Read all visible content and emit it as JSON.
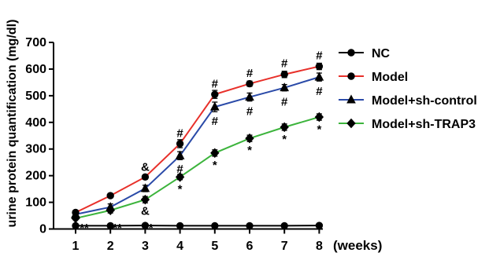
{
  "chart_data": {
    "type": "line",
    "xlabel": "(weeks)",
    "ylabel": "urine protein quantification (mg/dl)",
    "x": [
      1,
      2,
      3,
      4,
      5,
      6,
      7,
      8
    ],
    "xticks": [
      "1",
      "2",
      "3",
      "4",
      "5",
      "6",
      "7",
      "8"
    ],
    "ylim": [
      0,
      700
    ],
    "yticks": [
      "0",
      "100",
      "200",
      "300",
      "400",
      "500",
      "600",
      "700"
    ],
    "grid": false,
    "legend_position": "right",
    "series": [
      {
        "name": "NC",
        "color": "#000000",
        "marker": "circle",
        "values": [
          12,
          12,
          13,
          12,
          12,
          12,
          12,
          13
        ],
        "errors": [
          3,
          3,
          3,
          3,
          3,
          3,
          3,
          3
        ]
      },
      {
        "name": "Model",
        "color": "#e8302a",
        "marker": "circle",
        "values": [
          62,
          125,
          195,
          320,
          505,
          545,
          580,
          610
        ],
        "errors": [
          6,
          8,
          8,
          15,
          15,
          10,
          12,
          12
        ]
      },
      {
        "name": "Model+sh-control",
        "color": "#2a4aa8",
        "marker": "triangle",
        "values": [
          55,
          82,
          152,
          275,
          458,
          495,
          530,
          570
        ],
        "errors": [
          6,
          12,
          12,
          15,
          18,
          15,
          12,
          15
        ]
      },
      {
        "name": "Model+sh-TRAP3",
        "color": "#3cb43c",
        "marker": "diamond",
        "values": [
          40,
          70,
          110,
          195,
          285,
          340,
          382,
          420
        ],
        "errors": [
          6,
          10,
          12,
          10,
          12,
          12,
          12,
          12
        ]
      }
    ],
    "annotations": [
      {
        "text": "#",
        "x": 4,
        "y": 360
      },
      {
        "text": "#",
        "x": 5,
        "y": 545
      },
      {
        "text": "#",
        "x": 6,
        "y": 585
      },
      {
        "text": "#",
        "x": 7,
        "y": 622
      },
      {
        "text": "#",
        "x": 8,
        "y": 652
      },
      {
        "text": "&",
        "x": 3,
        "y": 233
      },
      {
        "text": "#",
        "x": 4,
        "y": 226
      },
      {
        "text": "#",
        "x": 5,
        "y": 405
      },
      {
        "text": "#",
        "x": 6,
        "y": 442
      },
      {
        "text": "#",
        "x": 7,
        "y": 478
      },
      {
        "text": "#",
        "x": 8,
        "y": 518
      },
      {
        "text": "&",
        "x": 3,
        "y": 68
      },
      {
        "text": "*",
        "x": 4,
        "y": 150
      },
      {
        "text": "*",
        "x": 5,
        "y": 240
      },
      {
        "text": "*",
        "x": 6,
        "y": 296
      },
      {
        "text": "*",
        "x": 7,
        "y": 337
      },
      {
        "text": "*",
        "x": 8,
        "y": 375
      },
      {
        "text": "**",
        "x": 1.25,
        "y": 4
      },
      {
        "text": "**",
        "x": 2.2,
        "y": 4
      },
      {
        "text": "**",
        "x": 3.1,
        "y": 4
      }
    ]
  }
}
